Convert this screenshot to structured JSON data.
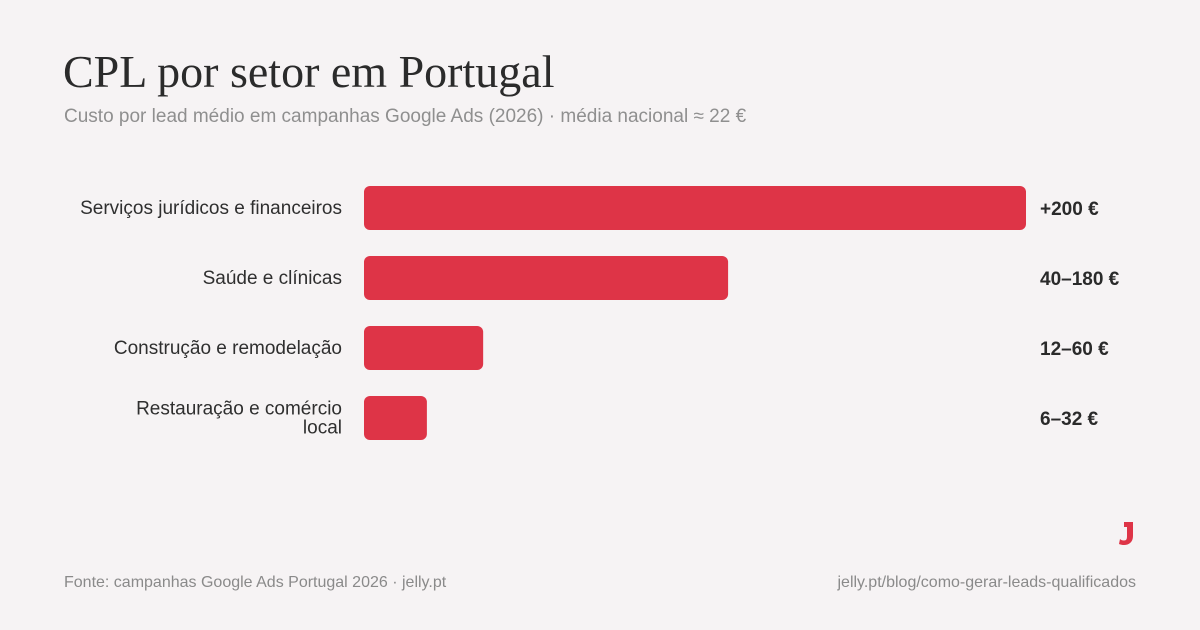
{
  "header": {
    "title": "CPL por setor em Portugal",
    "subtitle": "Custo por lead médio em campanhas Google Ads (2026) · média nacional ≈ 22 €"
  },
  "footer": {
    "source": "Fonte: campanhas Google Ads Portugal 2026 · jelly.pt",
    "url": "jelly.pt/blog/como-gerar-leads-qualificados"
  },
  "logo": {
    "icon": "jelly-j-logo"
  },
  "colors": {
    "bar": "#de3447",
    "background": "#f6f3f4",
    "accent": "#de3447"
  },
  "chart_data": {
    "type": "bar",
    "orientation": "horizontal",
    "categories": [
      [
        "Serviços jurídicos e financeiros"
      ],
      [
        "Saúde e clínicas"
      ],
      [
        "Construção e remodelação"
      ],
      [
        "Restauração e comércio",
        "local"
      ]
    ],
    "values": [
      200,
      110,
      36,
      19
    ],
    "value_labels": [
      "+200 €",
      "40–180 €",
      "12–60 €",
      "6–32 €"
    ],
    "unit": "€",
    "xlim": [
      0,
      200
    ],
    "grid": false,
    "legend": "none"
  }
}
